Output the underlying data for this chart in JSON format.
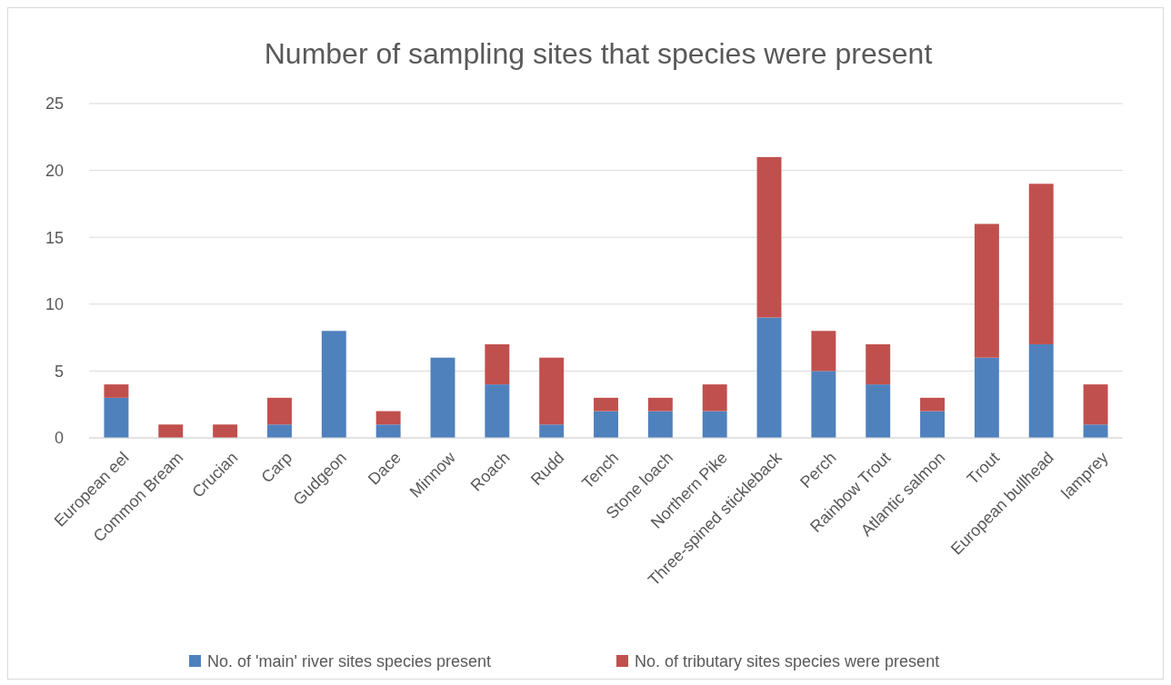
{
  "chart_data": {
    "type": "bar",
    "title": "Number of sampling sites that species were present",
    "stacked": true,
    "categories": [
      "European eel",
      "Common Bream",
      "Crucian",
      "Carp",
      "Gudgeon",
      "Dace",
      "Minnow",
      "Roach",
      "Rudd",
      "Tench",
      "Stone loach",
      "Northern Pike",
      "Three-spined stickleback",
      "Perch",
      "Rainbow Trout",
      "Atlantic salmon",
      "Trout",
      "European bullhead",
      "lamprey"
    ],
    "series": [
      {
        "name": "No. of 'main' river sites species present",
        "color": "#4f81bd",
        "values": [
          3,
          0,
          0,
          1,
          8,
          1,
          6,
          4,
          1,
          2,
          2,
          2,
          9,
          5,
          4,
          2,
          6,
          7,
          1
        ]
      },
      {
        "name": "No. of tributary sites species were present",
        "color": "#c0504d",
        "values": [
          1,
          1,
          1,
          2,
          0,
          1,
          0,
          3,
          5,
          1,
          1,
          2,
          12,
          3,
          3,
          1,
          10,
          12,
          3
        ]
      }
    ],
    "ylim": [
      0,
      25
    ],
    "yticks": [
      0,
      5,
      10,
      15,
      20,
      25
    ],
    "grid": "y",
    "legend": "bottom"
  }
}
